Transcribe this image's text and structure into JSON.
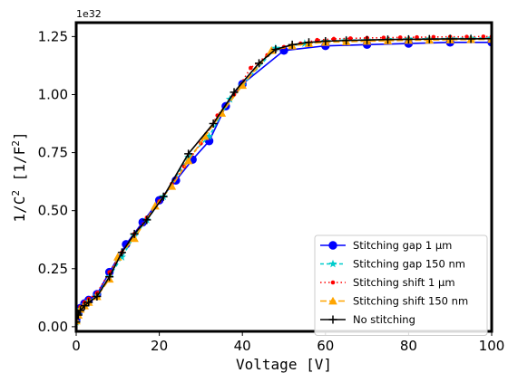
{
  "chart_data": {
    "type": "line",
    "title": "",
    "xlabel": "Voltage [V]",
    "ylabel": "1/C",
    "ylabel_sup": "2",
    "ylabel_unit": "[1/F",
    "ylabel_unit_sup": "2",
    "ylabel_close": "]",
    "y_offset_text": "1e32",
    "y_multiplier": 1e+32,
    "xlim": [
      0,
      100
    ],
    "ylim": [
      -0.02,
      1.31
    ],
    "xticks": [
      0,
      20,
      40,
      60,
      80,
      100
    ],
    "xtick_labels": [
      "0",
      "20",
      "40",
      "60",
      "80",
      "100"
    ],
    "yticks": [
      0.0,
      0.25,
      0.5,
      0.75,
      1.0,
      1.25
    ],
    "ytick_labels": [
      "0.00",
      "0.25",
      "0.50",
      "0.75",
      "1.00",
      "1.25"
    ],
    "grid": false,
    "legend_position": "lower-right",
    "series": [
      {
        "name": "Stitching gap 1 µm",
        "color": "#0000ff",
        "dash": "",
        "marker": "circle",
        "x": [
          0,
          0.5,
          1,
          2,
          3,
          5,
          8,
          12,
          16,
          20,
          24,
          28,
          32,
          36,
          40,
          50,
          60,
          70,
          80,
          90,
          100
        ],
        "y": [
          0.03,
          0.06,
          0.08,
          0.1,
          0.115,
          0.14,
          0.235,
          0.355,
          0.45,
          0.545,
          0.63,
          0.72,
          0.8,
          0.95,
          1.045,
          1.19,
          1.21,
          1.215,
          1.22,
          1.225,
          1.225
        ]
      },
      {
        "name": "Stitching gap 150 nm",
        "color": "#00cccc",
        "dash": "4,3",
        "marker": "star",
        "x": [
          0,
          0.5,
          1,
          2,
          3,
          5,
          8,
          11,
          14,
          17,
          21,
          27,
          32,
          37,
          40,
          48,
          55,
          60,
          65,
          70,
          75,
          80,
          85,
          90,
          95,
          100
        ],
        "y": [
          0.02,
          0.05,
          0.075,
          0.095,
          0.11,
          0.135,
          0.215,
          0.3,
          0.39,
          0.46,
          0.56,
          0.73,
          0.82,
          0.98,
          1.04,
          1.2,
          1.22,
          1.23,
          1.235,
          1.235,
          1.238,
          1.24,
          1.24,
          1.242,
          1.243,
          1.244
        ]
      },
      {
        "name": "Stitching shift 1 µm",
        "color": "#ff0000",
        "dash": "1.5,3",
        "marker": "dot",
        "x": [
          0,
          0.5,
          1,
          2,
          3,
          5,
          8,
          11,
          14,
          17,
          20,
          23,
          26,
          30,
          34,
          38,
          42,
          46,
          50,
          54,
          58,
          62,
          66,
          70,
          74,
          78,
          82,
          86,
          90,
          94,
          98,
          100
        ],
        "y": [
          0.03,
          0.06,
          0.085,
          0.105,
          0.12,
          0.145,
          0.235,
          0.32,
          0.4,
          0.47,
          0.54,
          0.615,
          0.69,
          0.79,
          0.91,
          1.0,
          1.115,
          1.17,
          1.205,
          1.22,
          1.235,
          1.24,
          1.242,
          1.244,
          1.245,
          1.246,
          1.247,
          1.248,
          1.249,
          1.249,
          1.25,
          1.25
        ]
      },
      {
        "name": "Stitching shift 150 nm",
        "color": "#ffa500",
        "dash": "7,3",
        "marker": "triangle",
        "x": [
          0,
          0.5,
          1,
          2,
          3,
          5,
          8,
          10,
          14,
          19,
          23,
          27,
          31,
          35,
          40,
          47,
          52,
          56,
          60,
          65,
          70,
          75,
          80,
          85,
          90,
          95,
          100
        ],
        "y": [
          0.025,
          0.05,
          0.075,
          0.09,
          0.105,
          0.13,
          0.205,
          0.3,
          0.38,
          0.52,
          0.605,
          0.715,
          0.82,
          0.92,
          1.04,
          1.19,
          1.21,
          1.22,
          1.225,
          1.228,
          1.23,
          1.232,
          1.234,
          1.235,
          1.236,
          1.237,
          1.238
        ]
      },
      {
        "name": "No stitching",
        "color": "#000000",
        "dash": "",
        "marker": "plus",
        "x": [
          0,
          0.5,
          1,
          2,
          3,
          5,
          8,
          11,
          14,
          17,
          21,
          27,
          33,
          38,
          44,
          48,
          52,
          56,
          60,
          65,
          70,
          75,
          80,
          85,
          90,
          95,
          100
        ],
        "y": [
          0.02,
          0.05,
          0.07,
          0.09,
          0.105,
          0.13,
          0.215,
          0.32,
          0.4,
          0.46,
          0.56,
          0.745,
          0.875,
          1.01,
          1.135,
          1.195,
          1.215,
          1.225,
          1.23,
          1.233,
          1.235,
          1.237,
          1.238,
          1.239,
          1.24,
          1.24,
          1.241
        ]
      }
    ]
  }
}
